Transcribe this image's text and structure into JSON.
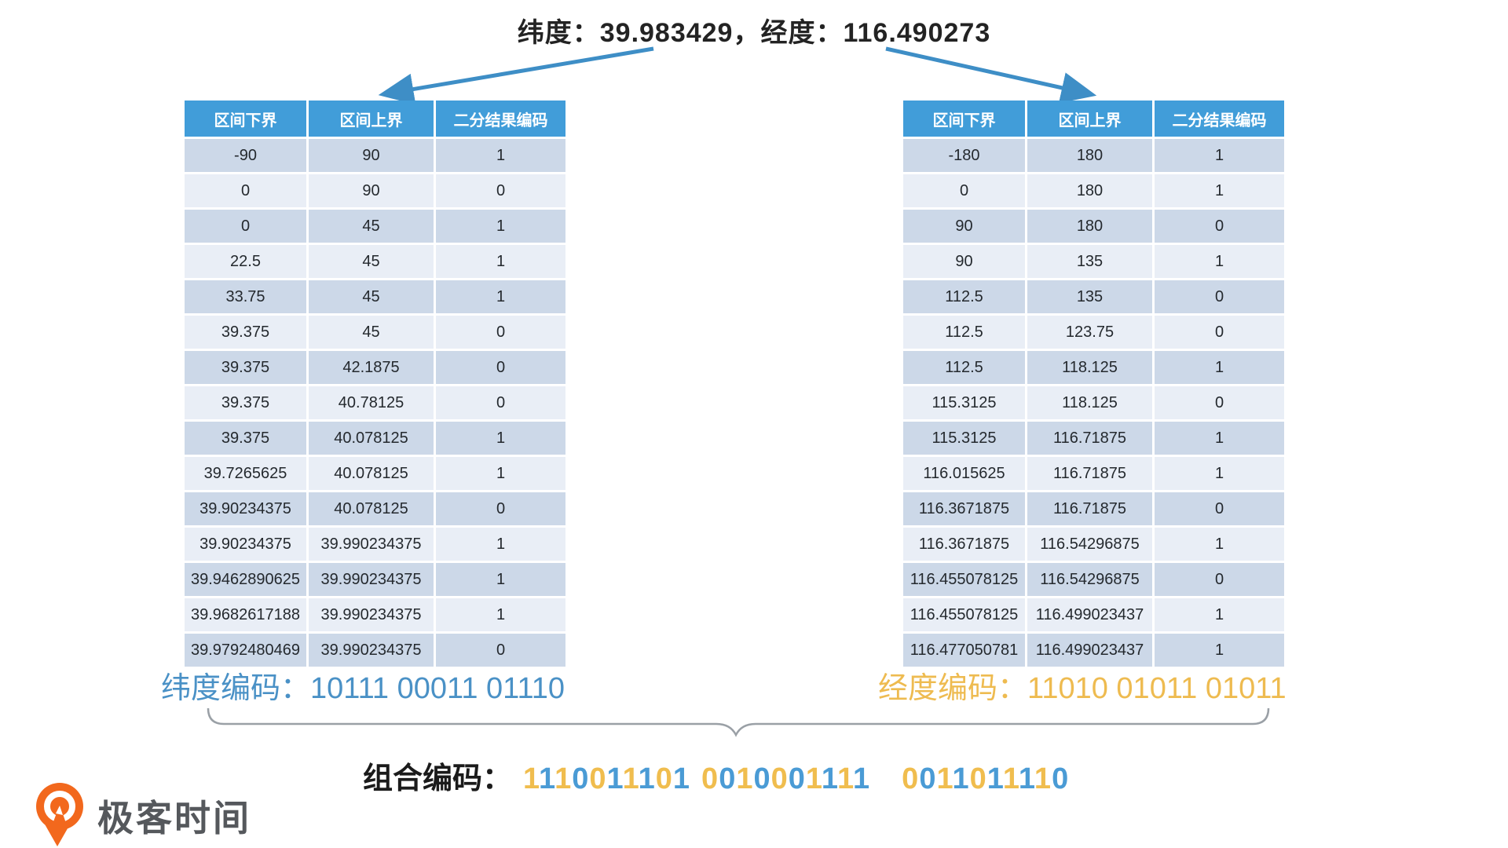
{
  "title": "纬度：39.983429，经度：116.490273",
  "colors": {
    "table_header_blue": "#419dd9",
    "row_dark": "#ccd8e8",
    "row_light": "#e9eef6",
    "arrow_blue": "#3e8ec6",
    "latitude_blue": "#4a91c6",
    "longitude_gold": "#eebb50",
    "combined_lon_yellow": "#f0bd4e",
    "combined_lat_blue": "#4a9bd5",
    "logo_orange": "#f2681d",
    "logo_text_gray": "#55585c"
  },
  "latitude_table": {
    "headers": [
      "区间下界",
      "区间上界",
      "二分结果编码"
    ],
    "rows": [
      [
        "-90",
        "90",
        "1"
      ],
      [
        "0",
        "90",
        "0"
      ],
      [
        "0",
        "45",
        "1"
      ],
      [
        "22.5",
        "45",
        "1"
      ],
      [
        "33.75",
        "45",
        "1"
      ],
      [
        "39.375",
        "45",
        "0"
      ],
      [
        "39.375",
        "42.1875",
        "0"
      ],
      [
        "39.375",
        "40.78125",
        "0"
      ],
      [
        "39.375",
        "40.078125",
        "1"
      ],
      [
        "39.7265625",
        "40.078125",
        "1"
      ],
      [
        "39.90234375",
        "40.078125",
        "0"
      ],
      [
        "39.90234375",
        "39.990234375",
        "1"
      ],
      [
        "39.9462890625",
        "39.990234375",
        "1"
      ],
      [
        "39.9682617188",
        "39.990234375",
        "1"
      ],
      [
        "39.9792480469",
        "39.990234375",
        "0"
      ]
    ]
  },
  "longitude_table": {
    "headers": [
      "区间下界",
      "区间上界",
      "二分结果编码"
    ],
    "rows": [
      [
        "-180",
        "180",
        "1"
      ],
      [
        "0",
        "180",
        "1"
      ],
      [
        "90",
        "180",
        "0"
      ],
      [
        "90",
        "135",
        "1"
      ],
      [
        "112.5",
        "135",
        "0"
      ],
      [
        "112.5",
        "123.75",
        "0"
      ],
      [
        "112.5",
        "118.125",
        "1"
      ],
      [
        "115.3125",
        "118.125",
        "0"
      ],
      [
        "115.3125",
        "116.71875",
        "1"
      ],
      [
        "116.015625",
        "116.71875",
        "1"
      ],
      [
        "116.3671875",
        "116.71875",
        "0"
      ],
      [
        "116.3671875",
        "116.54296875",
        "1"
      ],
      [
        "116.455078125",
        "116.54296875",
        "0"
      ],
      [
        "116.455078125",
        "116.499023437",
        "1"
      ],
      [
        "116.477050781",
        "116.499023437",
        "1"
      ]
    ]
  },
  "latitude_code": {
    "label": "纬度编码：",
    "value": "10111 00011 01110"
  },
  "longitude_code": {
    "label": "经度编码：",
    "value": "11010 01011 01011"
  },
  "combined_code": {
    "label": "组合编码：",
    "groups": [
      "1110011101",
      "0010001111",
      "0011011110"
    ]
  },
  "logo": {
    "text": "极客时间"
  }
}
